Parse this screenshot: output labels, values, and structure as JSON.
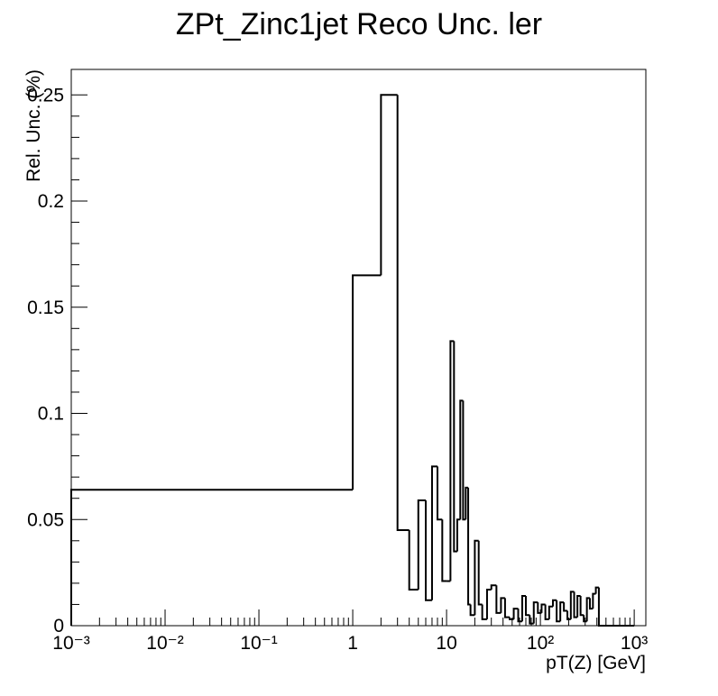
{
  "chart_data": {
    "type": "histogram",
    "title": "ZPt_Zinc1jet Reco Unc. ler",
    "x_label": "pT(Z) [GeV]",
    "y_label": "Rel. Unc. (%)",
    "log_x": true,
    "color": "#000000",
    "bins": [
      0.001,
      1,
      2,
      3,
      4,
      5,
      6,
      7,
      8,
      9,
      10,
      11,
      12,
      13,
      14,
      15,
      16,
      17,
      18,
      20,
      22,
      24,
      27,
      30,
      34,
      38,
      42,
      47,
      52,
      58,
      64,
      70,
      77,
      85,
      94,
      103,
      113,
      124,
      136,
      149,
      163,
      178,
      194,
      211,
      229,
      248,
      268,
      290,
      313,
      337,
      363,
      390,
      420,
      1000
    ],
    "values": [
      0.064,
      0.165,
      0.25,
      0.045,
      0.017,
      0.059,
      0.012,
      0.075,
      0.05,
      0.021,
      0.021,
      0.134,
      0.035,
      0.05,
      0.106,
      0.05,
      0.065,
      0.01,
      0.005,
      0.04,
      0.01,
      0.003,
      0.017,
      0.019,
      0.006,
      0.013,
      0.004,
      0.003,
      0.008,
      0.002,
      0.014,
      0.005,
      0.001,
      0.011,
      0.006,
      0.01,
      0.003,
      0.009,
      0.012,
      0.002,
      0.011,
      0.007,
      0.003,
      0.016,
      0.004,
      0.014,
      0.005,
      0.002,
      0.013,
      0.008,
      0.015,
      0.018,
      0
    ],
    "xlim": [
      0.001,
      1330
    ],
    "ylim": [
      0,
      0.262
    ],
    "xticks": [
      {
        "value": 0.001,
        "label": "10⁻³"
      },
      {
        "value": 0.01,
        "label": "10⁻²"
      },
      {
        "value": 0.1,
        "label": "10⁻¹"
      },
      1,
      10,
      {
        "value": 100,
        "label": "10²"
      },
      {
        "value": 1000,
        "label": "10³"
      }
    ],
    "yticks": [
      0,
      0.05,
      0.1,
      0.15,
      0.2,
      0.25
    ]
  }
}
